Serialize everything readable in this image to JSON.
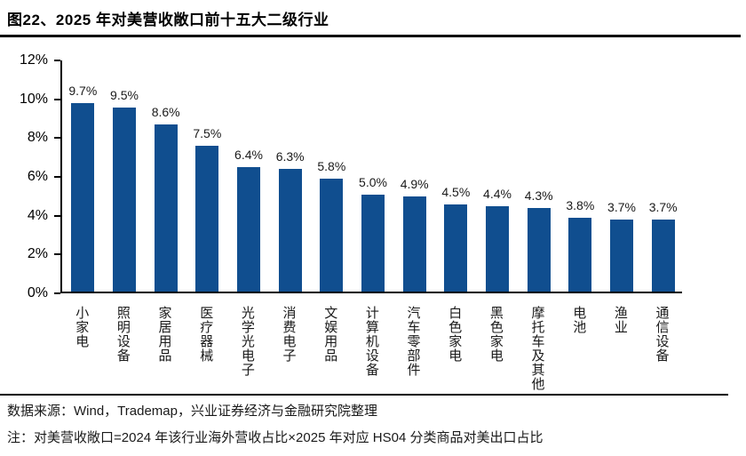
{
  "figure": {
    "title": "图22、2025 年对美营收敞口前十五大二级行业",
    "source_line": "数据来源：Wind，Trademap，兴业证券经济与金融研究院整理",
    "note_line": "注：对美营收敞口=2024 年该行业海外营收占比×2025 年对应 HS04 分类商品对美出口占比"
  },
  "colors": {
    "bar": "#104E8F",
    "axis": "#000000",
    "text": "#1a1a1a",
    "rule": "#000000"
  },
  "chart_data": {
    "type": "bar",
    "title": "2025 年对美营收敞口前十五大二级行业",
    "categories": [
      "小家电",
      "照明设备",
      "家居用品",
      "医疗器械",
      "光学光电子",
      "消费电子",
      "文娱用品",
      "计算机设备",
      "汽车零部件",
      "白色家电",
      "黑色家电",
      "摩托车及其他",
      "电池",
      "渔业",
      "通信设备"
    ],
    "values": [
      9.7,
      9.5,
      8.6,
      7.5,
      6.4,
      6.3,
      5.8,
      5.0,
      4.9,
      4.5,
      4.4,
      4.3,
      3.8,
      3.7,
      3.7
    ],
    "value_labels": [
      "9.7%",
      "9.5%",
      "8.6%",
      "7.5%",
      "6.4%",
      "6.3%",
      "5.8%",
      "5.0%",
      "4.9%",
      "4.5%",
      "4.4%",
      "4.3%",
      "3.8%",
      "3.7%",
      "3.7%"
    ],
    "xlabel": "",
    "ylabel": "",
    "ylim": [
      0,
      12
    ],
    "ytick_values": [
      0,
      2,
      4,
      6,
      8,
      10,
      12
    ],
    "ytick_labels": [
      "0%",
      "2%",
      "4%",
      "6%",
      "8%",
      "10%",
      "12%"
    ],
    "grid": false,
    "legend": false,
    "bar_color": "#104E8F"
  }
}
